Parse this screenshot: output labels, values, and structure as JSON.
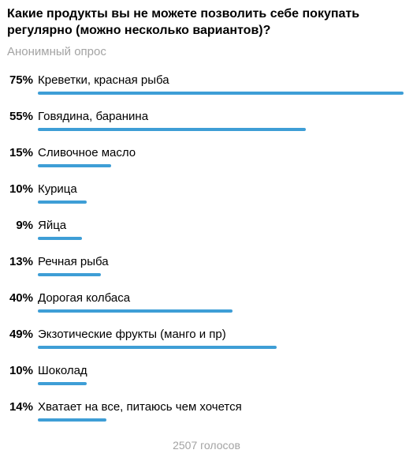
{
  "poll": {
    "question": "Какие продукты вы не можете позволить себе покупать регулярно (можно несколько вариантов)?",
    "type_label": "Анонимный опрос",
    "accent_color": "#3e9ed6",
    "options": [
      {
        "percent_label": "75%",
        "percent": 75,
        "label": "Креветки, красная рыба"
      },
      {
        "percent_label": "55%",
        "percent": 55,
        "label": "Говядина, баранина"
      },
      {
        "percent_label": "15%",
        "percent": 15,
        "label": "Сливочное масло"
      },
      {
        "percent_label": "10%",
        "percent": 10,
        "label": "Курица"
      },
      {
        "percent_label": "9%",
        "percent": 9,
        "label": "Яйца"
      },
      {
        "percent_label": "13%",
        "percent": 13,
        "label": "Речная рыба"
      },
      {
        "percent_label": "40%",
        "percent": 40,
        "label": "Дорогая колбаса"
      },
      {
        "percent_label": "49%",
        "percent": 49,
        "label": "Экзотические фрукты (манго и пр)"
      },
      {
        "percent_label": "10%",
        "percent": 10,
        "label": "Шоколад"
      },
      {
        "percent_label": "14%",
        "percent": 14,
        "label": "Хватает на все, питаюсь чем хочется"
      }
    ],
    "votes_label": "2507 голосов"
  }
}
